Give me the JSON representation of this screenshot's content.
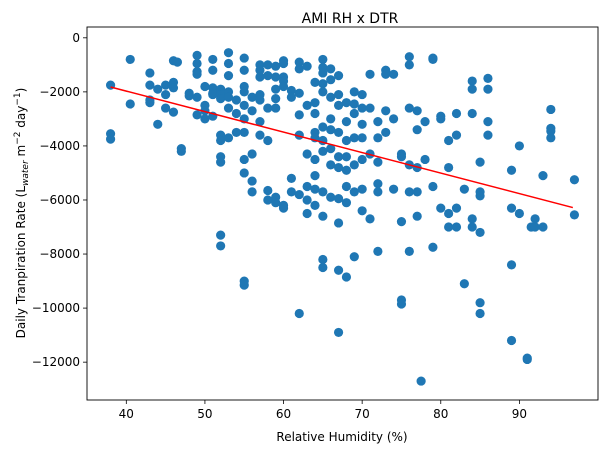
{
  "chart_data": {
    "type": "scatter",
    "title": "AMI RH x DTR",
    "xlabel": "Relative Humidity (%)",
    "ylabel": {
      "main": "Daily Tranpiration Rate (L",
      "sub": "water",
      "unit1": " m",
      "sup1": "−2",
      "unit2": " day",
      "sup2": "−1",
      "close": ")"
    },
    "xlim": [
      35,
      100
    ],
    "ylim": [
      -13400,
      400
    ],
    "xticks": [
      40,
      50,
      60,
      70,
      80,
      90
    ],
    "xtick_labels": [
      "40",
      "50",
      "60",
      "70",
      "80",
      "90"
    ],
    "yticks": [
      0,
      -2000,
      -4000,
      -6000,
      -8000,
      -10000,
      -12000
    ],
    "ytick_labels": [
      "0",
      "−2000",
      "−4000",
      "−6000",
      "−8000",
      "−10000",
      "−12000"
    ],
    "grid": false,
    "point_color": "#1f77b4",
    "fit_color": "#ff0000",
    "fit_line": {
      "x": [
        38,
        96.8
      ],
      "y": [
        -1820,
        -6280
      ]
    },
    "points": [
      [
        38,
        -1750
      ],
      [
        38,
        -3550
      ],
      [
        38,
        -3750
      ],
      [
        40.5,
        -800
      ],
      [
        40.5,
        -2450
      ],
      [
        43,
        -1300
      ],
      [
        43,
        -1750
      ],
      [
        43,
        -2300
      ],
      [
        43,
        -2400
      ],
      [
        44,
        -1900
      ],
      [
        44,
        -3200
      ],
      [
        45,
        -1750
      ],
      [
        45,
        -2100
      ],
      [
        45,
        -2600
      ],
      [
        46,
        -850
      ],
      [
        46,
        -1650
      ],
      [
        46,
        -1850
      ],
      [
        46,
        -2750
      ],
      [
        46.5,
        -900
      ],
      [
        47,
        -4100
      ],
      [
        47,
        -4200
      ],
      [
        48,
        -2050
      ],
      [
        48,
        -2150
      ],
      [
        49,
        -650
      ],
      [
        49,
        -950
      ],
      [
        49,
        -1250
      ],
      [
        49,
        -1350
      ],
      [
        49,
        -2200
      ],
      [
        49,
        -2850
      ],
      [
        50,
        -1800
      ],
      [
        50,
        -2500
      ],
      [
        50,
        -2700
      ],
      [
        50,
        -3000
      ],
      [
        51,
        -800
      ],
      [
        51,
        -1200
      ],
      [
        51,
        -1850
      ],
      [
        51,
        -2050
      ],
      [
        51,
        -2100
      ],
      [
        51,
        -2900
      ],
      [
        52,
        -1900
      ],
      [
        52,
        -2000
      ],
      [
        52,
        -2100
      ],
      [
        52,
        -2250
      ],
      [
        52,
        -3600
      ],
      [
        52,
        -3800
      ],
      [
        52,
        -4400
      ],
      [
        52,
        -4600
      ],
      [
        52,
        -7300
      ],
      [
        52,
        -7700
      ],
      [
        53,
        -550
      ],
      [
        53,
        -950
      ],
      [
        53,
        -1400
      ],
      [
        53,
        -2000
      ],
      [
        53,
        -2200
      ],
      [
        53,
        -2600
      ],
      [
        53,
        -3700
      ],
      [
        54,
        -2300
      ],
      [
        54,
        -2800
      ],
      [
        54,
        -3500
      ],
      [
        55,
        -750
      ],
      [
        55,
        -1200
      ],
      [
        55,
        -1800
      ],
      [
        55,
        -2000
      ],
      [
        55,
        -2500
      ],
      [
        55,
        -3000
      ],
      [
        55,
        -3500
      ],
      [
        55,
        -4500
      ],
      [
        55,
        -5000
      ],
      [
        55,
        -9000
      ],
      [
        55,
        -9150
      ],
      [
        56,
        -2200
      ],
      [
        56,
        -2700
      ],
      [
        56,
        -4300
      ],
      [
        56,
        -5300
      ],
      [
        56,
        -5700
      ],
      [
        57,
        -1000
      ],
      [
        57,
        -1200
      ],
      [
        57,
        -1450
      ],
      [
        57,
        -2100
      ],
      [
        57,
        -2300
      ],
      [
        57,
        -3100
      ],
      [
        57,
        -3600
      ],
      [
        58,
        -1000
      ],
      [
        58,
        -1400
      ],
      [
        58,
        -2600
      ],
      [
        58,
        -3800
      ],
      [
        58,
        -5650
      ],
      [
        58,
        -6000
      ],
      [
        59,
        -1050
      ],
      [
        59,
        -1450
      ],
      [
        59,
        -1900
      ],
      [
        59,
        -2250
      ],
      [
        59,
        -2600
      ],
      [
        59,
        -5900
      ],
      [
        59,
        -6100
      ],
      [
        60,
        -850
      ],
      [
        60,
        -950
      ],
      [
        60,
        -1450
      ],
      [
        60,
        -1600
      ],
      [
        60,
        -1800
      ],
      [
        60,
        -6200
      ],
      [
        60,
        -6300
      ],
      [
        61,
        -1950
      ],
      [
        61,
        -2200
      ],
      [
        61,
        -5200
      ],
      [
        61,
        -5700
      ],
      [
        62,
        -900
      ],
      [
        62,
        -1150
      ],
      [
        62,
        -2050
      ],
      [
        62,
        -2850
      ],
      [
        62,
        -3600
      ],
      [
        62,
        -5800
      ],
      [
        62,
        -10200
      ],
      [
        63,
        -1050
      ],
      [
        63,
        -2500
      ],
      [
        63,
        -4300
      ],
      [
        63,
        -5500
      ],
      [
        63,
        -6000
      ],
      [
        63,
        -6500
      ],
      [
        64,
        -1650
      ],
      [
        64,
        -2400
      ],
      [
        64,
        -2800
      ],
      [
        64,
        -3500
      ],
      [
        64,
        -3700
      ],
      [
        64,
        -4500
      ],
      [
        64,
        -5100
      ],
      [
        64,
        -5600
      ],
      [
        64,
        -6200
      ],
      [
        65,
        -800
      ],
      [
        65,
        -1100
      ],
      [
        65,
        -1300
      ],
      [
        65,
        -1700
      ],
      [
        65,
        -2000
      ],
      [
        65,
        -3300
      ],
      [
        65,
        -3800
      ],
      [
        65,
        -4200
      ],
      [
        65,
        -5700
      ],
      [
        65,
        -6600
      ],
      [
        65,
        -8200
      ],
      [
        65,
        -8500
      ],
      [
        66,
        -1150
      ],
      [
        66,
        -1550
      ],
      [
        66,
        -2200
      ],
      [
        66,
        -3000
      ],
      [
        66,
        -3400
      ],
      [
        66,
        -4100
      ],
      [
        66,
        -4700
      ],
      [
        66,
        -5900
      ],
      [
        67,
        -1400
      ],
      [
        67,
        -2100
      ],
      [
        67,
        -2500
      ],
      [
        67,
        -3500
      ],
      [
        67,
        -4400
      ],
      [
        67,
        -4800
      ],
      [
        67,
        -5950
      ],
      [
        67,
        -6850
      ],
      [
        67,
        -8600
      ],
      [
        67,
        -10900
      ],
      [
        68,
        -2400
      ],
      [
        68,
        -3100
      ],
      [
        68,
        -3800
      ],
      [
        68,
        -4400
      ],
      [
        68,
        -4900
      ],
      [
        68,
        -5500
      ],
      [
        68,
        -6100
      ],
      [
        68,
        -8850
      ],
      [
        69,
        -2000
      ],
      [
        69,
        -2450
      ],
      [
        69,
        -2800
      ],
      [
        69,
        -3700
      ],
      [
        69,
        -4700
      ],
      [
        69,
        -5700
      ],
      [
        69,
        -8100
      ],
      [
        70,
        -2100
      ],
      [
        70,
        -2600
      ],
      [
        70,
        -3200
      ],
      [
        70,
        -3700
      ],
      [
        70,
        -4500
      ],
      [
        70,
        -5600
      ],
      [
        70,
        -6400
      ],
      [
        71,
        -1350
      ],
      [
        71,
        -2600
      ],
      [
        71,
        -4300
      ],
      [
        71,
        -6700
      ],
      [
        72,
        -3100
      ],
      [
        72,
        -3700
      ],
      [
        72,
        -4600
      ],
      [
        72,
        -5400
      ],
      [
        72,
        -5700
      ],
      [
        72,
        -7900
      ],
      [
        73,
        -1200
      ],
      [
        73,
        -1350
      ],
      [
        73,
        -2700
      ],
      [
        73,
        -3500
      ],
      [
        74,
        -1350
      ],
      [
        74,
        -3000
      ],
      [
        74,
        -5600
      ],
      [
        75,
        -4300
      ],
      [
        75,
        -4400
      ],
      [
        75,
        -6800
      ],
      [
        75,
        -9700
      ],
      [
        75,
        -9850
      ],
      [
        76,
        -700
      ],
      [
        76,
        -1000
      ],
      [
        76,
        -2600
      ],
      [
        76,
        -4700
      ],
      [
        76,
        -5700
      ],
      [
        76,
        -7900
      ],
      [
        77,
        -2700
      ],
      [
        77,
        -3400
      ],
      [
        77,
        -4800
      ],
      [
        77,
        -5700
      ],
      [
        77,
        -6600
      ],
      [
        77.5,
        -12700
      ],
      [
        78,
        -3100
      ],
      [
        78,
        -4500
      ],
      [
        79,
        -750
      ],
      [
        79,
        -800
      ],
      [
        79,
        -5500
      ],
      [
        79,
        -7750
      ],
      [
        80,
        -2900
      ],
      [
        80,
        -3000
      ],
      [
        80,
        -6300
      ],
      [
        81,
        -3800
      ],
      [
        81,
        -4800
      ],
      [
        81,
        -6500
      ],
      [
        81,
        -7000
      ],
      [
        82,
        -2800
      ],
      [
        82,
        -3600
      ],
      [
        82,
        -6300
      ],
      [
        82,
        -7000
      ],
      [
        83,
        -5600
      ],
      [
        83,
        -9100
      ],
      [
        84,
        -1600
      ],
      [
        84,
        -1900
      ],
      [
        84,
        -2800
      ],
      [
        84,
        -6700
      ],
      [
        84,
        -7000
      ],
      [
        85,
        -4600
      ],
      [
        85,
        -5700
      ],
      [
        85,
        -5850
      ],
      [
        85,
        -7200
      ],
      [
        85,
        -9800
      ],
      [
        85,
        -10200
      ],
      [
        86,
        -1500
      ],
      [
        86,
        -1900
      ],
      [
        86,
        -3100
      ],
      [
        86,
        -3600
      ],
      [
        89,
        -4900
      ],
      [
        89,
        -6300
      ],
      [
        89,
        -8400
      ],
      [
        89,
        -11200
      ],
      [
        90,
        -4000
      ],
      [
        90,
        -6500
      ],
      [
        91,
        -11850
      ],
      [
        91,
        -11900
      ],
      [
        91.5,
        -7000
      ],
      [
        92,
        -6700
      ],
      [
        92,
        -7000
      ],
      [
        93,
        -5100
      ],
      [
        93,
        -7000
      ],
      [
        94,
        -2650
      ],
      [
        94,
        -3350
      ],
      [
        94,
        -3450
      ],
      [
        94,
        -3700
      ],
      [
        97,
        -5250
      ],
      [
        97,
        -6550
      ]
    ]
  }
}
